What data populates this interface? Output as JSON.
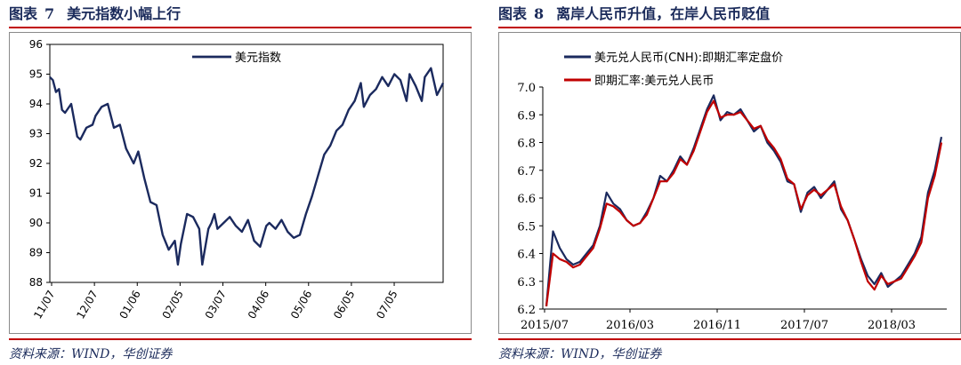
{
  "figures": [
    {
      "label": "图表",
      "number": "7",
      "title": "美元指数小幅上行",
      "source": "资料来源：WIND，华创证券"
    },
    {
      "label": "图表",
      "number": "8",
      "title": "离岸人民币升值，在岸人民币贬值",
      "source": "资料来源：WIND，华创证券"
    }
  ],
  "chart_data": [
    {
      "type": "line",
      "title": "",
      "xlabel": "",
      "ylabel": "",
      "ylim": [
        88,
        96
      ],
      "yticks": [
        88,
        89,
        90,
        91,
        92,
        93,
        94,
        95,
        96
      ],
      "xticks": [
        "11/07",
        "12/07",
        "01/06",
        "02/05",
        "03/07",
        "04/06",
        "05/06",
        "06/05",
        "07/05"
      ],
      "grid": false,
      "legend": "top-center",
      "color": "#1b2a5e",
      "series": [
        {
          "name": "美元指数",
          "x": [
            0,
            2,
            4,
            6,
            8,
            10,
            14,
            18,
            20,
            24,
            28,
            30,
            34,
            38,
            42,
            46,
            50,
            52,
            55,
            58,
            62,
            66,
            70,
            74,
            78,
            82,
            84,
            86,
            90,
            94,
            98,
            100,
            104,
            106,
            108,
            110,
            114,
            118,
            122,
            126,
            130,
            134,
            138,
            142,
            144,
            148,
            152,
            156,
            160,
            164,
            168,
            172,
            176,
            180,
            184,
            188,
            192,
            196,
            200,
            204,
            206,
            210,
            214,
            218,
            222,
            226,
            230,
            234,
            236,
            240,
            244,
            246,
            250,
            254,
            258
          ],
          "values": [
            94.9,
            94.8,
            94.4,
            94.5,
            93.8,
            93.7,
            94.0,
            92.9,
            92.8,
            93.2,
            93.3,
            93.6,
            93.9,
            94.0,
            93.2,
            93.3,
            92.5,
            92.3,
            92.0,
            92.4,
            91.5,
            90.7,
            90.6,
            89.6,
            89.1,
            89.4,
            88.6,
            89.3,
            90.3,
            90.2,
            89.8,
            88.6,
            89.8,
            90.0,
            90.3,
            89.8,
            90.0,
            90.2,
            89.9,
            89.7,
            90.1,
            89.4,
            89.2,
            89.9,
            90.0,
            89.8,
            90.1,
            89.7,
            89.5,
            89.6,
            90.3,
            90.9,
            91.6,
            92.3,
            92.6,
            93.1,
            93.3,
            93.8,
            94.1,
            94.7,
            93.9,
            94.3,
            94.5,
            94.9,
            94.6,
            95.0,
            94.8,
            94.1,
            95.0,
            94.6,
            94.1,
            94.9,
            95.2,
            94.3,
            94.7
          ]
        }
      ]
    },
    {
      "type": "line",
      "title": "",
      "xlabel": "",
      "ylabel": "",
      "ylim": [
        6.2,
        7.0
      ],
      "yticks": [
        6.2,
        6.3,
        6.4,
        6.5,
        6.6,
        6.7,
        6.8,
        6.9,
        7.0
      ],
      "xticks": [
        "2015/07",
        "2016/03",
        "2016/11",
        "2017/07",
        "2018/03"
      ],
      "grid": false,
      "legend": "top-left",
      "series": [
        {
          "name": "美元兑人民币(CNH):即期汇率定盘价",
          "color": "#1b2a5e",
          "x": [
            0,
            1,
            2,
            3,
            4,
            5,
            6,
            7,
            8,
            9,
            10,
            11,
            12,
            13,
            14,
            15,
            16,
            17,
            18,
            19,
            20,
            21,
            22,
            23,
            24,
            25,
            26,
            27,
            28,
            29,
            30,
            31,
            32,
            33,
            34,
            35,
            36,
            37,
            38,
            39,
            40,
            41,
            42,
            43,
            44,
            45,
            46,
            47,
            48,
            49,
            50,
            51,
            52,
            53,
            54,
            55,
            56,
            57,
            58,
            59
          ],
          "values": [
            6.21,
            6.48,
            6.42,
            6.38,
            6.36,
            6.37,
            6.4,
            6.43,
            6.5,
            6.62,
            6.58,
            6.56,
            6.52,
            6.5,
            6.51,
            6.55,
            6.6,
            6.68,
            6.66,
            6.7,
            6.75,
            6.72,
            6.78,
            6.85,
            6.92,
            6.97,
            6.88,
            6.91,
            6.9,
            6.92,
            6.88,
            6.84,
            6.86,
            6.8,
            6.77,
            6.73,
            6.66,
            6.65,
            6.55,
            6.62,
            6.64,
            6.6,
            6.63,
            6.66,
            6.56,
            6.52,
            6.45,
            6.38,
            6.32,
            6.29,
            6.33,
            6.28,
            6.3,
            6.32,
            6.36,
            6.4,
            6.46,
            6.62,
            6.7,
            6.82
          ]
        },
        {
          "name": "即期汇率:美元兑人民币",
          "color": "#c00000",
          "x": [
            0,
            1,
            2,
            3,
            4,
            5,
            6,
            7,
            8,
            9,
            10,
            11,
            12,
            13,
            14,
            15,
            16,
            17,
            18,
            19,
            20,
            21,
            22,
            23,
            24,
            25,
            26,
            27,
            28,
            29,
            30,
            31,
            32,
            33,
            34,
            35,
            36,
            37,
            38,
            39,
            40,
            41,
            42,
            43,
            44,
            45,
            46,
            47,
            48,
            49,
            50,
            51,
            52,
            53,
            54,
            55,
            56,
            57,
            58,
            59
          ],
          "values": [
            6.21,
            6.4,
            6.38,
            6.37,
            6.35,
            6.36,
            6.39,
            6.42,
            6.49,
            6.58,
            6.57,
            6.55,
            6.52,
            6.5,
            6.51,
            6.54,
            6.6,
            6.66,
            6.66,
            6.69,
            6.74,
            6.72,
            6.77,
            6.84,
            6.91,
            6.95,
            6.89,
            6.9,
            6.9,
            6.91,
            6.88,
            6.85,
            6.86,
            6.81,
            6.78,
            6.74,
            6.67,
            6.65,
            6.56,
            6.61,
            6.63,
            6.61,
            6.63,
            6.65,
            6.57,
            6.52,
            6.45,
            6.37,
            6.3,
            6.27,
            6.32,
            6.29,
            6.3,
            6.31,
            6.35,
            6.39,
            6.44,
            6.6,
            6.68,
            6.8
          ]
        }
      ]
    }
  ]
}
